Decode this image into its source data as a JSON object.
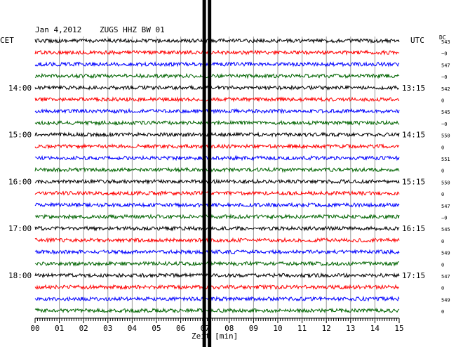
{
  "header": {
    "date": "Jan 4,2012",
    "station": "ZUGS HHZ BW 01",
    "left_zone": "CET",
    "right_zone": "UTC",
    "dc_label": "DC"
  },
  "chart_data": {
    "type": "line",
    "title": "Jan 4,2012   ZUGS HHZ BW 01",
    "xlabel": "Zeit [min]",
    "xlim": [
      0,
      15
    ],
    "x_ticks": [
      "00",
      "01",
      "02",
      "03",
      "04",
      "05",
      "06",
      "07",
      "08",
      "09",
      "10",
      "11",
      "12",
      "13",
      "14",
      "15"
    ],
    "trace_count": 24,
    "trace_colors": [
      "#000000",
      "#ff0000",
      "#0000ff",
      "#006400"
    ],
    "left_hour_labels": [
      {
        "trace": 4,
        "label": "14:00"
      },
      {
        "trace": 8,
        "label": "15:00"
      },
      {
        "trace": 12,
        "label": "16:00"
      },
      {
        "trace": 16,
        "label": "17:00"
      },
      {
        "trace": 20,
        "label": "18:00"
      }
    ],
    "right_hour_labels": [
      {
        "trace": 4,
        "label": "13:15"
      },
      {
        "trace": 8,
        "label": "14:15"
      },
      {
        "trace": 12,
        "label": "15:15"
      },
      {
        "trace": 16,
        "label": "16:15"
      },
      {
        "trace": 20,
        "label": "17:15"
      }
    ],
    "dc_offsets": [
      "543",
      "−0",
      "547",
      "−0",
      "542",
      "0",
      "545",
      "−0",
      "550",
      "0",
      "551",
      "0",
      "550",
      "0",
      "547",
      "−0",
      "545",
      "0",
      "549",
      "0",
      "547",
      "0",
      "549",
      "0"
    ],
    "event_minute": 7.1
  }
}
